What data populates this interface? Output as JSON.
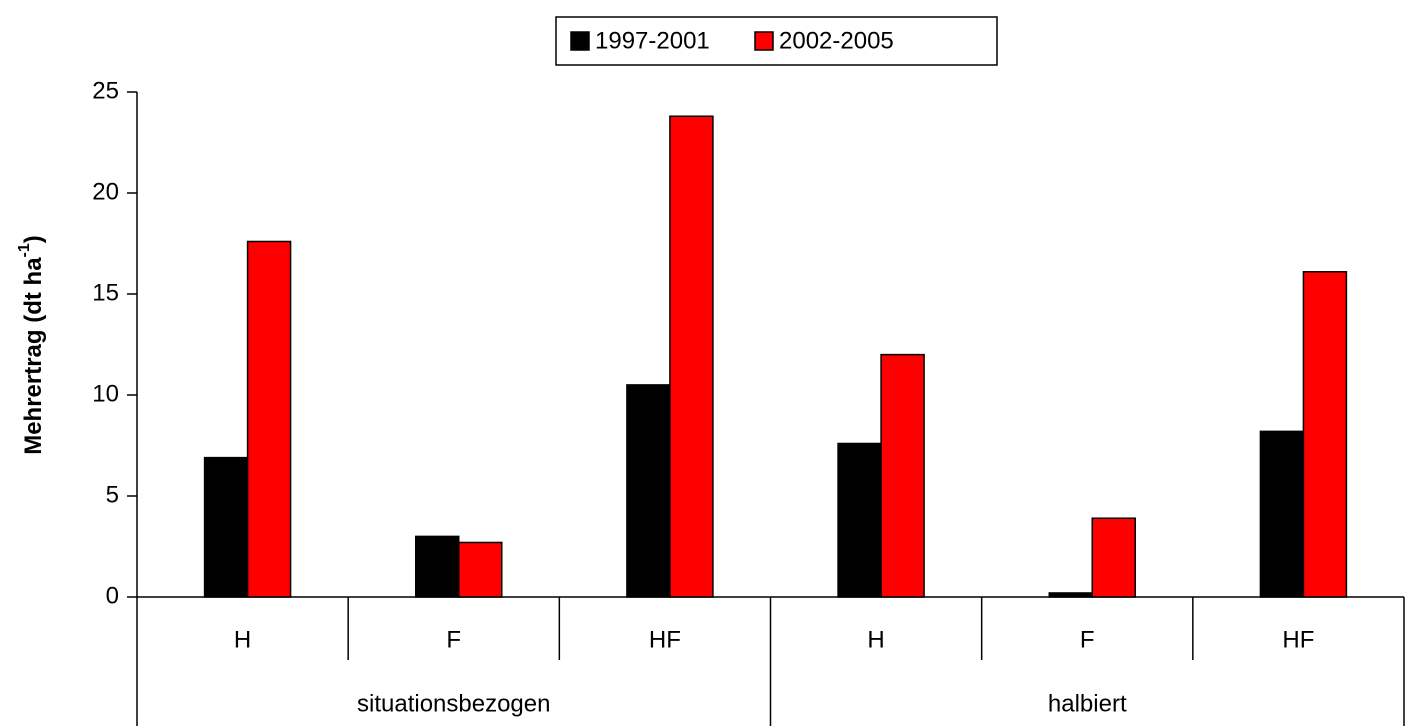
{
  "chart_data": {
    "type": "bar",
    "ylabel": {
      "text": "Mehrertrag (dt ha",
      "sup": "-1",
      "end": ")"
    },
    "categories": [
      "H",
      "F",
      "HF",
      "H",
      "F",
      "HF"
    ],
    "groups": [
      "situationsbezogen",
      "halbiert"
    ],
    "series": [
      {
        "name": "1997-2001",
        "color": "#000000",
        "values": [
          6.9,
          3.0,
          10.5,
          7.6,
          0.2,
          8.2
        ]
      },
      {
        "name": "2002-2005",
        "color": "#ff0000",
        "values": [
          17.6,
          2.7,
          23.8,
          12.0,
          3.9,
          16.1
        ]
      }
    ],
    "ylim": [
      0,
      25
    ],
    "yticks": [
      0,
      5,
      10,
      15,
      20,
      25
    ],
    "legend": "top"
  }
}
